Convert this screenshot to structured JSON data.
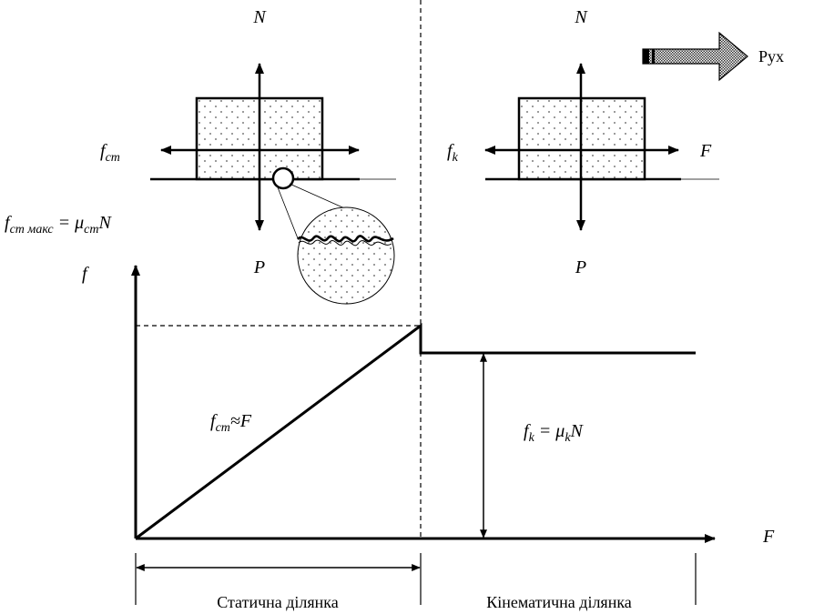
{
  "labels": {
    "n_static": "N",
    "p_static": "P",
    "f_static_main": "f",
    "f_static_sub": "ст",
    "n_kinetic": "N",
    "p_kinetic": "P",
    "f_kinetic_main": "f",
    "f_kinetic_sub": "k",
    "applied_force": "F",
    "motion": "Рух",
    "max_static": {
      "f": "f",
      "f_sub": "ст макс",
      "eq": " = ",
      "mu": "μ",
      "mu_sub": "ст",
      "n": "N"
    },
    "y_axis": "f",
    "x_axis": "F",
    "static_relation": {
      "f": "f",
      "f_sub": "ст",
      "approx": "≈",
      "F": "F"
    },
    "kinetic_relation": {
      "f": "f",
      "f_sub": "k",
      "eq": " = ",
      "mu": "μ",
      "mu_sub": "k",
      "n": "N"
    },
    "static_zone": "Статична ділянка",
    "kinetic_zone": "Кінематична ділянка"
  }
}
